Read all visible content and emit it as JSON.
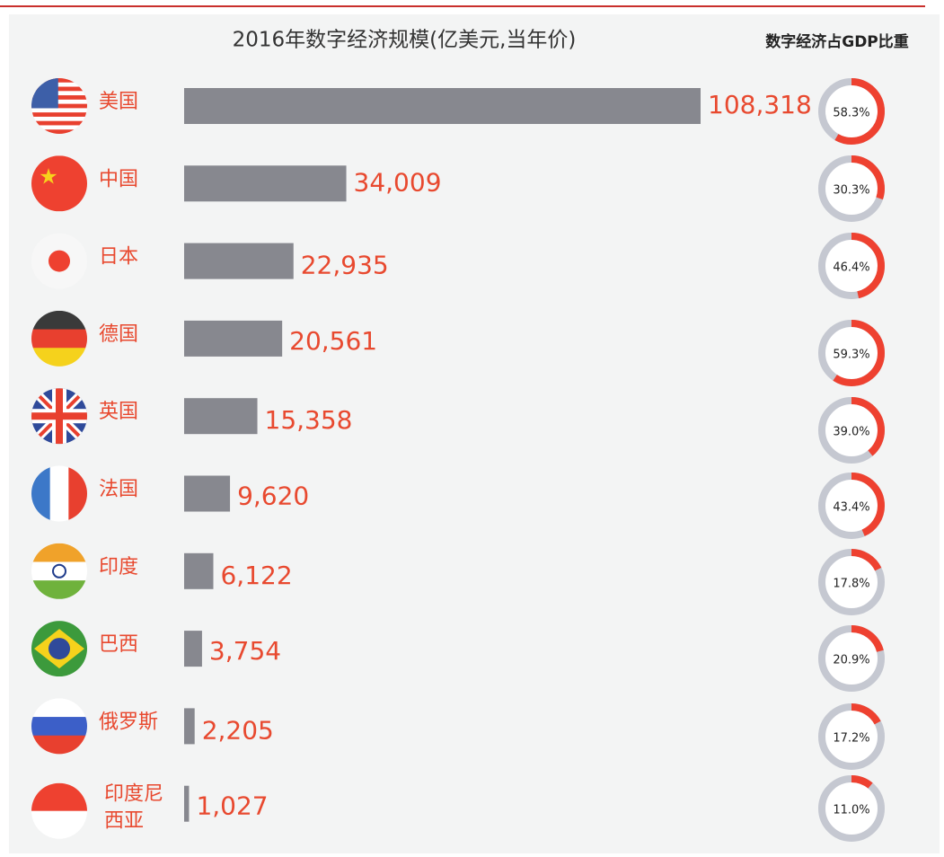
{
  "chart_data": [
    {
      "type": "bar",
      "title": "2016年数字经济规模(亿美元,当年价)",
      "categories": [
        "美国",
        "中国",
        "日本",
        "德国",
        "英国",
        "法国",
        "印度",
        "巴西",
        "俄罗斯",
        "印度尼西亚"
      ],
      "values": [
        108318,
        34009,
        22935,
        20561,
        15358,
        9620,
        6122,
        3754,
        2205,
        1027
      ],
      "value_labels": [
        "108,318",
        "34,009",
        "22,935",
        "20,561",
        "15,358",
        "9,620",
        "6,122",
        "3,754",
        "2,205",
        "1,027"
      ],
      "color": "#87888f",
      "label_color": "#e8492f"
    },
    {
      "type": "donut",
      "title": "数字经济占GDP比重",
      "values": [
        58.3,
        30.3,
        46.4,
        59.3,
        39.0,
        43.4,
        17.8,
        20.9,
        17.2,
        11.0
      ],
      "value_labels": [
        "58.3%",
        "30.3%",
        "46.4%",
        "59.3%",
        "39.0%",
        "43.4%",
        "17.8%",
        "20.9%",
        "17.2%",
        "11.0%"
      ],
      "color": "#ee4130",
      "track_color": "#c5c8d1"
    }
  ]
}
